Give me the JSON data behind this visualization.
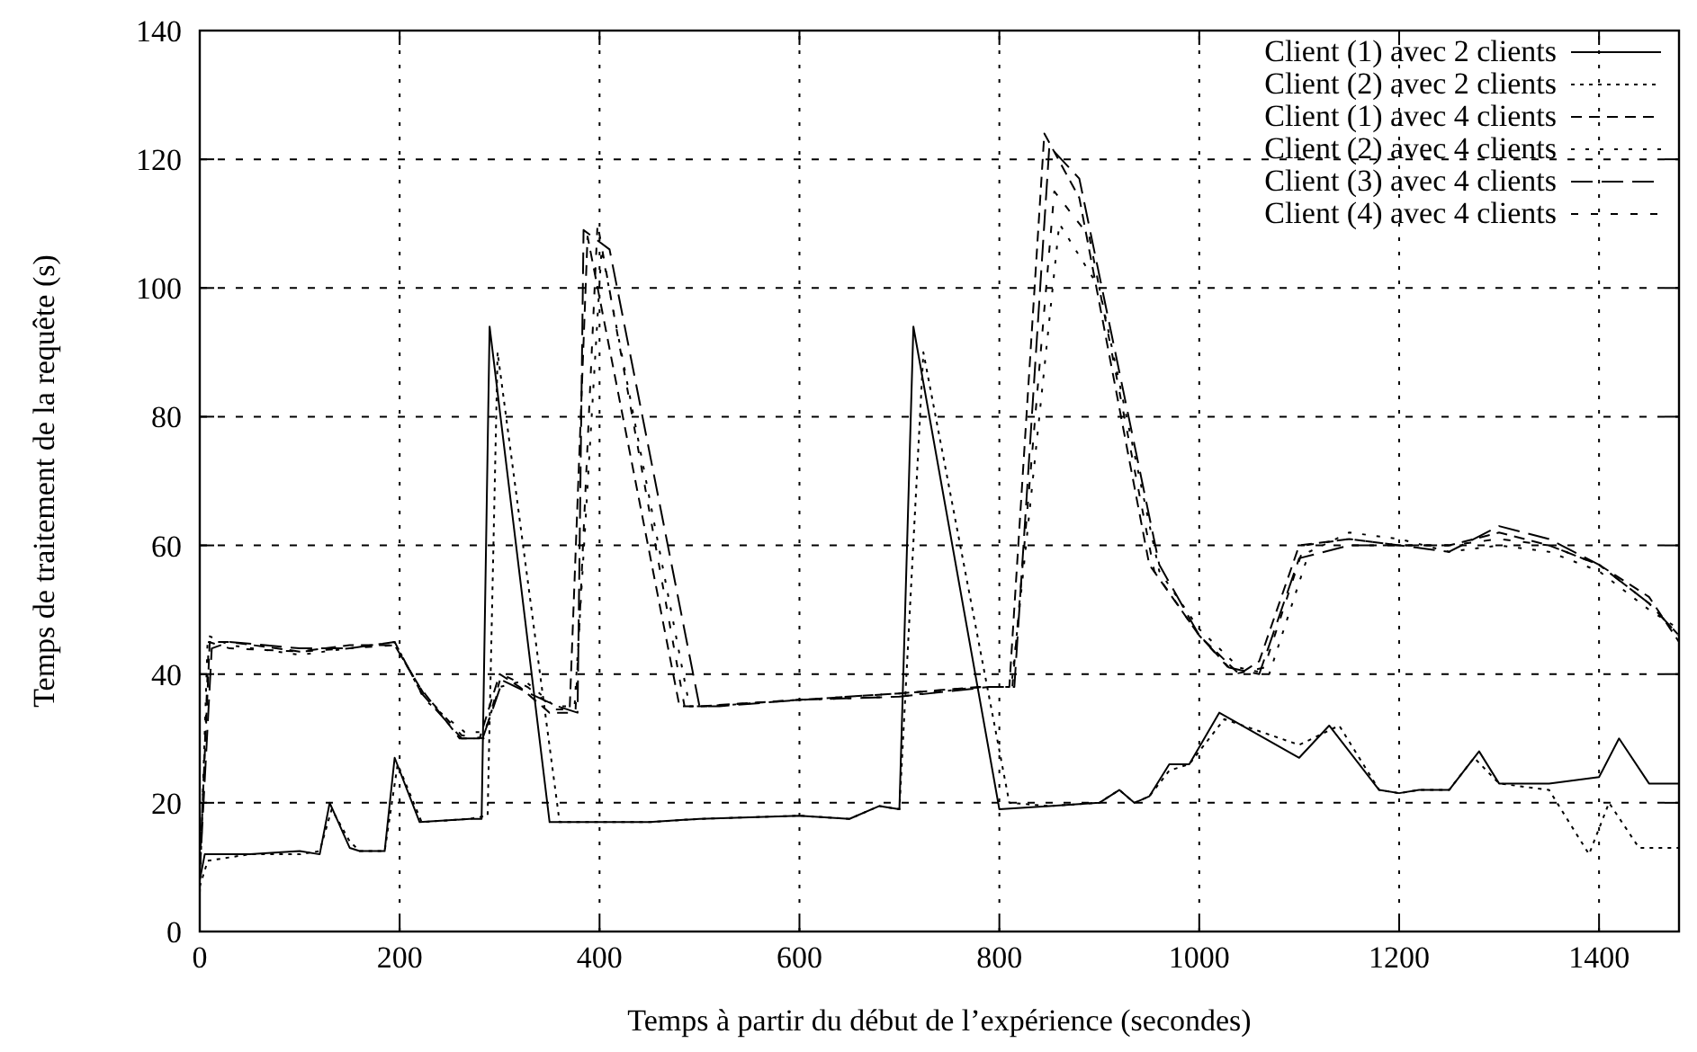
{
  "chart_data": {
    "type": "line",
    "xlabel": "Temps à partir du début de l’expérience (secondes)",
    "ylabel": "Temps de traitement de la requête (s)",
    "xlim": [
      0,
      1480
    ],
    "ylim": [
      0,
      140
    ],
    "xticks": [
      0,
      200,
      400,
      600,
      800,
      1000,
      1200,
      1400
    ],
    "yticks": [
      0,
      20,
      40,
      60,
      80,
      100,
      120,
      140
    ],
    "grid": true,
    "legend": "top right",
    "series": [
      {
        "name": "Client (1) avec 2 clients",
        "color": "#000000",
        "line_style": "solid",
        "x": [
          0,
          5,
          50,
          100,
          120,
          130,
          150,
          160,
          185,
          195,
          220,
          270,
          282,
          290,
          350,
          400,
          450,
          500,
          600,
          650,
          680,
          700,
          714,
          800,
          850,
          900,
          920,
          935,
          950,
          970,
          990,
          1020,
          1100,
          1130,
          1180,
          1200,
          1220,
          1250,
          1280,
          1300,
          1350,
          1400,
          1420,
          1450,
          1480
        ],
        "values": [
          8,
          12,
          12,
          12.5,
          12,
          20,
          13,
          12.5,
          12.5,
          27,
          17,
          17.5,
          17.5,
          94,
          17,
          17,
          17,
          17.5,
          18,
          17.5,
          19.5,
          19,
          94,
          19,
          19.5,
          20,
          22,
          20,
          21,
          26,
          26,
          34,
          27,
          32,
          22,
          21.5,
          22,
          22,
          28,
          23,
          23,
          24,
          30,
          23,
          23
        ]
      },
      {
        "name": "Client (2) avec 2 clients",
        "color": "#000000",
        "line_style": "dotted",
        "x": [
          0,
          8,
          50,
          100,
          120,
          132,
          150,
          160,
          185,
          198,
          222,
          270,
          288,
          298,
          360,
          400,
          450,
          500,
          600,
          650,
          680,
          700,
          724,
          810,
          850,
          900,
          920,
          935,
          950,
          970,
          990,
          1025,
          1100,
          1140,
          1180,
          1200,
          1220,
          1250,
          1275,
          1300,
          1350,
          1390,
          1410,
          1440,
          1480
        ],
        "values": [
          7,
          11,
          12,
          12,
          12.5,
          19,
          14,
          12.5,
          12.5,
          26,
          17,
          17.5,
          18,
          90,
          17,
          17,
          17,
          17.5,
          18,
          17.5,
          19.5,
          19,
          90,
          20,
          19.5,
          20,
          22,
          20,
          21,
          25,
          26,
          33,
          29,
          32,
          22,
          21.5,
          22,
          22,
          27,
          23,
          22,
          12,
          20,
          13,
          13
        ]
      },
      {
        "name": "Client (1) avec 4 clients",
        "color": "#000000",
        "line_style": "dashed",
        "x": [
          0,
          10,
          30,
          100,
          150,
          195,
          220,
          260,
          280,
          300,
          320,
          350,
          370,
          388,
          480,
          500,
          600,
          700,
          780,
          810,
          845,
          880,
          950,
          1000,
          1040,
          1060,
          1100,
          1150,
          1200,
          1250,
          1300,
          1350,
          1400,
          1450,
          1480
        ],
        "values": [
          10,
          45,
          45,
          43.5,
          44.5,
          44.5,
          38,
          30,
          30,
          40,
          38,
          34,
          34,
          108,
          35,
          35,
          36,
          37,
          38,
          38,
          124,
          114,
          57,
          46,
          40,
          42,
          60,
          61,
          60,
          60,
          62,
          60,
          57,
          52,
          45
        ]
      },
      {
        "name": "Client (2) avec 4 clients",
        "color": "#000000",
        "line_style": "dotted-wide",
        "x": [
          0,
          8,
          30,
          100,
          150,
          195,
          225,
          265,
          285,
          300,
          325,
          355,
          375,
          402,
          490,
          510,
          600,
          700,
          780,
          812,
          860,
          900,
          960,
          1000,
          1040,
          1070,
          1110,
          1150,
          1200,
          1250,
          1300,
          1350,
          1400,
          1450,
          1480
        ],
        "values": [
          6,
          46,
          44.5,
          43,
          44,
          45,
          36,
          31,
          31,
          38,
          39,
          35,
          35,
          106,
          35,
          35,
          36,
          36.5,
          38,
          38,
          110,
          100,
          56,
          47,
          41,
          40,
          59,
          62,
          61,
          59,
          60,
          59,
          56,
          50,
          47
        ]
      },
      {
        "name": "Client (3) avec 4 clients",
        "color": "#000000",
        "line_style": "long-dashed",
        "x": [
          0,
          12,
          30,
          100,
          150,
          195,
          222,
          262,
          283,
          303,
          330,
          358,
          378,
          384,
          410,
          500,
          520,
          600,
          700,
          790,
          815,
          850,
          880,
          960,
          1000,
          1030,
          1060,
          1100,
          1150,
          1200,
          1250,
          1300,
          1350,
          1400,
          1450,
          1480
        ],
        "values": [
          9,
          44,
          45,
          44,
          44,
          45,
          37,
          30,
          30,
          39,
          37,
          35,
          34,
          109,
          106,
          35,
          35,
          36,
          36.5,
          38,
          38,
          122,
          117,
          57,
          46,
          41,
          40,
          58,
          60,
          60,
          59,
          63,
          61,
          57,
          51,
          46
        ]
      },
      {
        "name": "Client (4) avec 4 clients",
        "color": "#000000",
        "line_style": "short-dashed",
        "x": [
          0,
          9,
          30,
          100,
          150,
          195,
          224,
          262,
          284,
          302,
          328,
          356,
          376,
          398,
          485,
          505,
          600,
          700,
          785,
          813,
          855,
          890,
          955,
          1000,
          1035,
          1065,
          1105,
          1150,
          1200,
          1250,
          1300,
          1350,
          1400,
          1450,
          1480
        ],
        "values": [
          8,
          45,
          44,
          43.5,
          44,
          44.5,
          37,
          30.5,
          30,
          40,
          38,
          34.5,
          34.5,
          110,
          35,
          35,
          36,
          37,
          38,
          38,
          115,
          108,
          56,
          46,
          40,
          41,
          60,
          61,
          60,
          60,
          61,
          60,
          57,
          51,
          46
        ]
      }
    ]
  }
}
